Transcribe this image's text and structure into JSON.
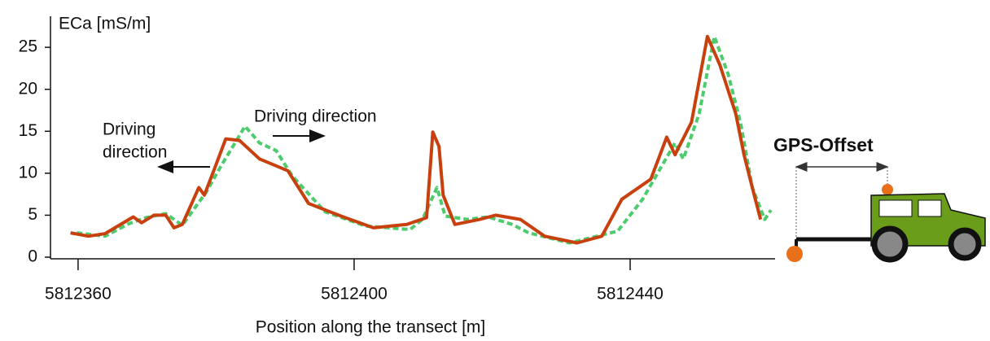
{
  "chart_data": {
    "type": "line",
    "ylabel": "ECa [mS/m]",
    "xlabel": "Position along the transect [m]",
    "annotations": {
      "left_direction": [
        "Driving",
        "direction"
      ],
      "right_direction": "Driving direction",
      "offset": "GPS-Offset"
    },
    "xlim": [
      5812356,
      5812461
    ],
    "xticks": [
      5812360,
      5812400,
      5812440
    ],
    "ylim": [
      0,
      28.7
    ],
    "yticks": [
      0,
      5,
      10,
      15,
      20,
      25
    ],
    "series": [
      {
        "color": "#c8400e",
        "dashed": false,
        "x": [
          5812358.9,
          5812361.5,
          5812363.9,
          5812368.0,
          5812369.2,
          5812371.0,
          5812372.7,
          5812373.9,
          5812375.1,
          5812377.5,
          5812378.3,
          5812379.8,
          5812381.4,
          5812383.4,
          5812386.3,
          5812390.4,
          5812393.4,
          5812398.1,
          5812402.8,
          5812407.6,
          5812410.5,
          5812411.4,
          5812412.3,
          5812412.9,
          5812414.6,
          5812418.2,
          5812420.5,
          5812424.1,
          5812427.6,
          5812432.3,
          5812435.9,
          5812438.8,
          5812443.0,
          5812445.3,
          5812446.5,
          5812448.9,
          5812451.2,
          5812453.0,
          5812455.3,
          5812456.5,
          5812457.7,
          5812458.9
        ],
        "values": [
          2.9,
          2.5,
          2.8,
          4.8,
          4.1,
          5.0,
          5.0,
          3.5,
          3.9,
          8.3,
          7.4,
          10.6,
          14.1,
          13.9,
          11.7,
          10.3,
          6.4,
          4.9,
          3.5,
          3.9,
          4.7,
          14.9,
          13.2,
          7.4,
          3.9,
          4.5,
          5.0,
          4.5,
          2.5,
          1.7,
          2.5,
          6.9,
          9.3,
          14.3,
          12.2,
          16.1,
          26.3,
          22.9,
          17.1,
          12.2,
          8.3,
          4.5
        ]
      },
      {
        "color": "#4ccc6c",
        "dashed": true,
        "x": [
          5812359.8,
          5812363.9,
          5812367.4,
          5812369.8,
          5812372.7,
          5812375.1,
          5812378.6,
          5812380.6,
          5812384.2,
          5812386.3,
          5812388.7,
          5812391.0,
          5812395.8,
          5812401.7,
          5812408.1,
          5812409.9,
          5812412.0,
          5812413.2,
          5812416.4,
          5812419.4,
          5812422.9,
          5812425.3,
          5812431.2,
          5812438.2,
          5812441.8,
          5812446.5,
          5812447.7,
          5812450.0,
          5812452.2,
          5812454.2,
          5812456.0,
          5812457.7,
          5812459.5,
          5812460.4
        ],
        "values": [
          2.9,
          2.5,
          4.0,
          4.7,
          5.2,
          3.8,
          7.8,
          10.7,
          15.6,
          13.6,
          12.7,
          9.7,
          5.4,
          3.7,
          3.3,
          4.5,
          8.3,
          4.9,
          4.5,
          4.8,
          3.9,
          2.9,
          1.7,
          3.1,
          6.9,
          13.6,
          11.7,
          17.1,
          26.3,
          21.8,
          16.0,
          8.3,
          4.5,
          5.6
        ]
      }
    ]
  }
}
